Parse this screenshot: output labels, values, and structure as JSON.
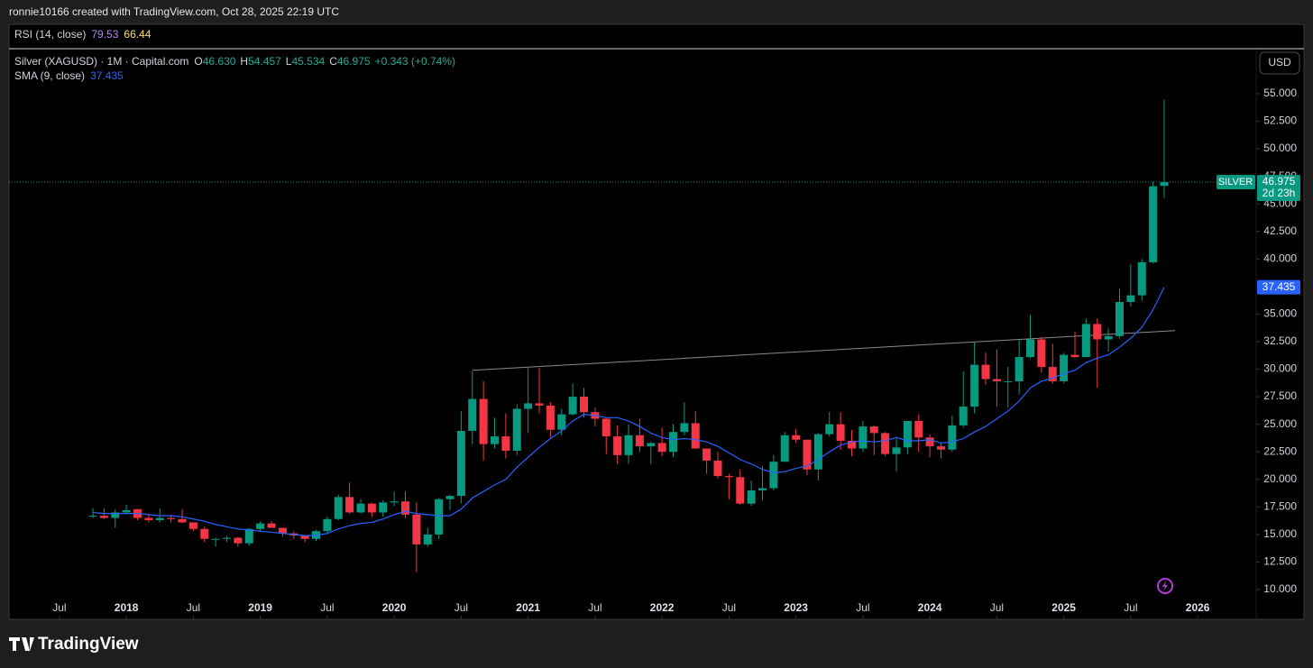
{
  "header": {
    "byline": "ronnie10166 created with TradingView.com, Oct 28, 2025 22:19 UTC"
  },
  "rsi_legend": {
    "title": "RSI (14, close)",
    "values": [
      "79.53",
      "66.44"
    ]
  },
  "legend": {
    "symbol": "Silver (XAGUSD) · 1M · Capital.com",
    "ohlc": [
      {
        "key": "O",
        "value": "46.630"
      },
      {
        "key": "H",
        "value": "54.457"
      },
      {
        "key": "L",
        "value": "45.534"
      },
      {
        "key": "C",
        "value": "46.975"
      }
    ],
    "change": "+0.343 (+0.74%)"
  },
  "currency_button": "USD",
  "brand": "TradingView",
  "chart_data": {
    "type": "candlestick",
    "categories": [
      "2017-10",
      "2017-11",
      "2017-12",
      "2018-01",
      "2018-02",
      "2018-03",
      "2018-04",
      "2018-05",
      "2018-06",
      "2018-07",
      "2018-08",
      "2018-09",
      "2018-10",
      "2018-11",
      "2018-12",
      "2019-01",
      "2019-02",
      "2019-03",
      "2019-04",
      "2019-05",
      "2019-06",
      "2019-07",
      "2019-08",
      "2019-09",
      "2019-10",
      "2019-11",
      "2019-12",
      "2020-01",
      "2020-02",
      "2020-03",
      "2020-04",
      "2020-05",
      "2020-06",
      "2020-07",
      "2020-08",
      "2020-09",
      "2020-10",
      "2020-11",
      "2020-12",
      "2021-01",
      "2021-02",
      "2021-03",
      "2021-04",
      "2021-05",
      "2021-06",
      "2021-07",
      "2021-08",
      "2021-09",
      "2021-10",
      "2021-11",
      "2021-12",
      "2022-01",
      "2022-02",
      "2022-03",
      "2022-04",
      "2022-05",
      "2022-06",
      "2022-07",
      "2022-08",
      "2022-09",
      "2022-10",
      "2022-11",
      "2022-12",
      "2023-01",
      "2023-02",
      "2023-03",
      "2023-04",
      "2023-05",
      "2023-06",
      "2023-07",
      "2023-08",
      "2023-09",
      "2023-10",
      "2023-11",
      "2023-12",
      "2024-01",
      "2024-02",
      "2024-03",
      "2024-04",
      "2024-05",
      "2024-06",
      "2024-07",
      "2024-08",
      "2024-09",
      "2024-10",
      "2024-11",
      "2024-12",
      "2025-01",
      "2025-02",
      "2025-03",
      "2025-04",
      "2025-05",
      "2025-06",
      "2025-07",
      "2025-08",
      "2025-09",
      "2025-10"
    ],
    "series": [
      {
        "name": "SILVER",
        "up_color": "#089981",
        "down_color": "#f23645",
        "open": [
          16.7,
          16.7,
          16.5,
          17.0,
          17.3,
          16.5,
          16.3,
          16.5,
          16.4,
          16.1,
          15.5,
          14.6,
          14.6,
          14.7,
          14.2,
          15.5,
          16.0,
          15.6,
          15.1,
          14.9,
          14.6,
          15.3,
          16.4,
          18.4,
          17.0,
          17.8,
          17.0,
          17.9,
          18.0,
          16.8,
          14.1,
          15.0,
          18.2,
          18.5,
          24.4,
          27.3,
          23.2,
          23.9,
          22.6,
          26.4,
          26.9,
          26.7,
          24.5,
          25.9,
          27.5,
          26.1,
          25.5,
          23.9,
          22.2,
          24.0,
          23.0,
          23.3,
          22.5,
          24.3,
          25.1,
          22.8,
          21.7,
          20.3,
          20.2,
          17.8,
          19.0,
          19.2,
          21.6,
          24.0,
          23.6,
          20.9,
          24.1,
          25.0,
          23.5,
          22.8,
          24.8,
          24.2,
          22.3,
          22.9,
          25.3,
          23.8,
          23.0,
          22.7,
          24.9,
          26.6,
          30.4,
          29.1,
          28.9,
          28.9,
          31.1,
          32.7,
          30.2,
          28.9,
          31.3,
          31.1,
          34.1,
          32.7,
          33.0,
          36.1,
          36.7,
          39.7,
          46.63
        ],
        "high": [
          17.4,
          17.4,
          17.3,
          17.7,
          17.3,
          16.9,
          17.4,
          16.8,
          17.3,
          16.1,
          15.7,
          14.7,
          14.9,
          14.8,
          15.6,
          16.2,
          16.2,
          15.6,
          15.3,
          14.9,
          15.4,
          16.6,
          18.6,
          19.7,
          18.2,
          17.9,
          18.1,
          18.9,
          18.9,
          17.9,
          15.6,
          18.3,
          18.6,
          26.2,
          29.8,
          28.9,
          25.6,
          26.0,
          26.8,
          30.1,
          30.1,
          27.0,
          26.4,
          28.7,
          28.3,
          26.5,
          25.6,
          24.9,
          25.0,
          25.5,
          23.4,
          24.7,
          25.0,
          27.0,
          26.2,
          22.8,
          22.5,
          20.5,
          20.9,
          19.9,
          21.2,
          22.2,
          24.3,
          24.6,
          23.6,
          24.2,
          26.1,
          26.1,
          24.5,
          25.3,
          24.9,
          24.3,
          23.7,
          25.2,
          25.9,
          24.1,
          23.4,
          25.8,
          29.8,
          32.5,
          31.5,
          31.8,
          30.2,
          32.7,
          34.9,
          32.9,
          32.3,
          31.5,
          33.4,
          34.6,
          34.6,
          33.7,
          37.3,
          39.5,
          40.0,
          47.0,
          54.457
        ],
        "low": [
          16.5,
          16.4,
          15.6,
          16.9,
          16.3,
          16.1,
          16.1,
          16.1,
          16.0,
          15.3,
          14.3,
          13.9,
          14.3,
          13.9,
          14.0,
          15.2,
          15.6,
          14.8,
          14.6,
          14.3,
          14.4,
          15.0,
          16.3,
          16.9,
          16.9,
          16.6,
          16.6,
          17.6,
          16.5,
          11.6,
          13.9,
          14.6,
          17.2,
          17.8,
          23.2,
          21.7,
          22.8,
          21.9,
          22.2,
          24.2,
          26.0,
          23.8,
          24.0,
          25.8,
          25.6,
          24.8,
          22.3,
          21.4,
          21.4,
          22.5,
          21.4,
          22.1,
          22.0,
          24.0,
          22.8,
          20.5,
          20.1,
          18.2,
          17.7,
          17.6,
          18.1,
          19.0,
          21.6,
          23.3,
          20.4,
          19.9,
          23.9,
          22.7,
          22.1,
          22.5,
          22.2,
          22.1,
          20.7,
          22.3,
          22.5,
          22.0,
          21.9,
          22.5,
          24.7,
          26.0,
          28.6,
          26.6,
          26.5,
          27.7,
          31.0,
          29.7,
          28.7,
          28.7,
          31.0,
          31.1,
          28.3,
          31.6,
          32.8,
          35.7,
          36.2,
          39.6,
          45.534
        ],
        "close": [
          16.7,
          16.5,
          17.0,
          17.2,
          16.5,
          16.3,
          16.5,
          16.4,
          16.1,
          15.5,
          14.6,
          14.6,
          14.7,
          14.2,
          15.5,
          16.0,
          15.6,
          15.1,
          14.9,
          14.6,
          15.3,
          16.4,
          18.4,
          17.0,
          17.8,
          17.0,
          17.9,
          18.0,
          16.8,
          14.1,
          15.0,
          18.2,
          18.5,
          24.4,
          27.3,
          23.2,
          23.9,
          22.6,
          26.4,
          26.9,
          26.7,
          24.5,
          25.9,
          27.5,
          26.1,
          25.5,
          23.9,
          22.2,
          24.0,
          23.0,
          23.3,
          22.5,
          24.3,
          25.1,
          22.8,
          21.7,
          20.3,
          20.2,
          17.8,
          19.0,
          19.2,
          21.6,
          24.0,
          23.6,
          20.9,
          24.1,
          25.0,
          23.5,
          22.8,
          24.8,
          24.2,
          22.3,
          22.9,
          25.3,
          23.8,
          23.0,
          22.7,
          24.9,
          26.6,
          30.4,
          29.1,
          28.9,
          28.9,
          31.1,
          32.7,
          30.2,
          28.9,
          31.3,
          31.1,
          34.1,
          32.7,
          33.0,
          36.1,
          36.7,
          39.7,
          46.6,
          46.975
        ]
      },
      {
        "name": "SMA (9, close)",
        "type": "line",
        "color": "#2962ff",
        "values": [
          17.0,
          16.9,
          16.9,
          16.9,
          16.9,
          16.8,
          16.7,
          16.7,
          16.6,
          16.4,
          16.2,
          15.9,
          15.7,
          15.5,
          15.4,
          15.3,
          15.2,
          15.1,
          15.0,
          14.9,
          14.9,
          15.1,
          15.5,
          15.8,
          16.0,
          16.1,
          16.4,
          16.8,
          17.1,
          16.9,
          16.8,
          16.7,
          16.7,
          17.3,
          18.3,
          18.9,
          19.5,
          20.0,
          21.1,
          22.0,
          22.9,
          23.7,
          24.4,
          25.3,
          25.9,
          25.8,
          25.6,
          25.6,
          25.3,
          24.8,
          24.2,
          23.8,
          23.6,
          23.7,
          23.6,
          23.4,
          23.0,
          22.4,
          21.8,
          21.4,
          20.9,
          20.6,
          20.7,
          21.0,
          21.2,
          21.8,
          22.5,
          23.1,
          23.4,
          23.5,
          23.4,
          23.5,
          23.8,
          23.5,
          23.5,
          23.6,
          23.3,
          23.4,
          23.7,
          24.3,
          24.8,
          25.5,
          26.2,
          27.1,
          28.3,
          28.9,
          29.2,
          29.6,
          29.9,
          30.6,
          31.0,
          31.3,
          32.0,
          32.8,
          33.8,
          35.4,
          37.435
        ]
      }
    ],
    "countdown": "2d 23h",
    "trendline": {
      "x": [
        "2020-08",
        "2025-10"
      ],
      "values": [
        29.9,
        33.5
      ],
      "color": "#8a8a8a"
    },
    "ylim": [
      7.3,
      59.0
    ],
    "yticks": [
      {
        "value": 10,
        "label": "10.000"
      },
      {
        "value": 12.5,
        "label": "12.500"
      },
      {
        "value": 15,
        "label": "15.000"
      },
      {
        "value": 17.5,
        "label": "17.500"
      },
      {
        "value": 20,
        "label": "20.000"
      },
      {
        "value": 22.5,
        "label": "22.500"
      },
      {
        "value": 25,
        "label": "25.000"
      },
      {
        "value": 27.5,
        "label": "27.500"
      },
      {
        "value": 30,
        "label": "30.000"
      },
      {
        "value": 32.5,
        "label": "32.500"
      },
      {
        "value": 35,
        "label": "35.000"
      },
      {
        "value": 37.5,
        "label": "37.500"
      },
      {
        "value": 40,
        "label": "40.000"
      },
      {
        "value": 42.5,
        "label": "42.500"
      },
      {
        "value": 45,
        "label": "45.000"
      },
      {
        "value": 47.5,
        "label": "47.500"
      },
      {
        "value": 50,
        "label": "50.000"
      },
      {
        "value": 52.5,
        "label": "52.500"
      },
      {
        "value": 55,
        "label": "55.000"
      }
    ],
    "xticks": [
      {
        "value": "2017-07",
        "label": "Jul"
      },
      {
        "value": "2018-01",
        "label": "2018"
      },
      {
        "value": "2018-07",
        "label": "Jul"
      },
      {
        "value": "2019-01",
        "label": "2019"
      },
      {
        "value": "2019-07",
        "label": "Jul"
      },
      {
        "value": "2020-01",
        "label": "2020"
      },
      {
        "value": "2020-07",
        "label": "Jul"
      },
      {
        "value": "2021-01",
        "label": "2021"
      },
      {
        "value": "2021-07",
        "label": "Jul"
      },
      {
        "value": "2022-01",
        "label": "2022"
      },
      {
        "value": "2022-07",
        "label": "Jul"
      },
      {
        "value": "2023-01",
        "label": "2023"
      },
      {
        "value": "2023-07",
        "label": "Jul"
      },
      {
        "value": "2024-01",
        "label": "2024"
      },
      {
        "value": "2024-07",
        "label": "Jul"
      },
      {
        "value": "2025-01",
        "label": "2025"
      },
      {
        "value": "2025-07",
        "label": "Jul"
      },
      {
        "value": "2026-01",
        "label": "2026"
      }
    ],
    "grid": false
  }
}
